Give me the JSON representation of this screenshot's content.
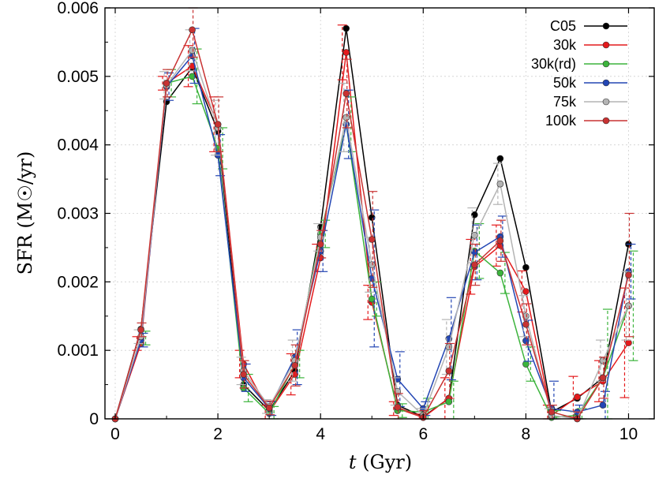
{
  "chart_data": {
    "type": "line",
    "title": "",
    "xlabel_italic": "t",
    "xlabel_rest": " (Gyr)",
    "ylabel": "SFR (M☉/yr)",
    "xlim": [
      -0.2,
      10.5
    ],
    "ylim": [
      0,
      0.006
    ],
    "x_ticks": [
      0,
      2,
      4,
      6,
      8,
      10
    ],
    "x_tick_labels": [
      "0",
      "2",
      "4",
      "6",
      "8",
      "10"
    ],
    "y_ticks": [
      0,
      0.001,
      0.002,
      0.003,
      0.004,
      0.005,
      0.006
    ],
    "y_tick_labels": [
      "0",
      "0.001",
      "0.002",
      "0.003",
      "0.004",
      "0.005",
      "0.006"
    ],
    "legend_position": "top-right",
    "x": [
      0,
      0.5,
      1,
      1.5,
      2,
      2.5,
      3,
      3.5,
      4,
      4.5,
      5,
      5.5,
      6,
      6.5,
      7,
      7.5,
      8,
      8.5,
      9,
      9.5,
      10
    ],
    "series": [
      {
        "name": "C05",
        "color": "#000000",
        "values": [
          0,
          0.00131,
          0.00463,
          0.00513,
          0.0042,
          0.0005,
          0.00012,
          0.0007,
          0.0028,
          0.0057,
          0.00294,
          0.0002,
          3e-05,
          0.0003,
          0.00298,
          0.0038,
          0.00221,
          0.0001,
          0.0003,
          0.0006,
          0.00255
        ],
        "errors": null
      },
      {
        "name": "30k",
        "color": "#e41a1c",
        "values": [
          0,
          0.0011,
          0.0049,
          0.00515,
          0.0043,
          0.0008,
          0.0001,
          0.00065,
          0.00235,
          0.00535,
          0.0017,
          0.00015,
          2e-05,
          0.0003,
          0.00222,
          0.00253,
          0.00186,
          5e-05,
          0.00032,
          0.00055,
          0.00111
        ],
        "errors": [
          0,
          0.0001,
          0.0001,
          0.0003,
          0.0004,
          0.0002,
          0.0001,
          0.0003,
          0.0002,
          0.0004,
          0.00025,
          0.0001,
          5e-05,
          0.0003,
          0.0004,
          0.0003,
          0.0003,
          0.00015,
          0.0003,
          0.0003,
          0.0008
        ]
      },
      {
        "name": "30k(rd)",
        "color": "#3cb43c",
        "values": [
          0,
          0.00118,
          0.0049,
          0.005,
          0.00395,
          0.00045,
          8e-05,
          0.0008,
          0.0027,
          0.0043,
          0.00175,
          0.00012,
          0.0001,
          0.00025,
          0.00245,
          0.00213,
          0.0008,
          2e-05,
          5e-05,
          0.0006,
          0.00165
        ],
        "errors": [
          0,
          0.0001,
          0.0002,
          0.0004,
          0.0003,
          0.0002,
          0.0001,
          0.0002,
          0.0002,
          0.0004,
          0.00025,
          0.0001,
          0.0002,
          0.0003,
          0.0004,
          0.0003,
          0.00025,
          0.0001,
          0.0001,
          0.001,
          0.0008
        ]
      },
      {
        "name": "50k",
        "color": "#2346b4",
        "values": [
          0,
          0.00115,
          0.00485,
          0.0053,
          0.00385,
          0.0006,
          0.00015,
          0.0009,
          0.00245,
          0.0043,
          0.00205,
          0.00058,
          0.00015,
          0.00117,
          0.00243,
          0.00266,
          0.00114,
          0.00015,
          0.0001,
          0.0002,
          0.00215
        ],
        "errors": [
          0,
          0.0001,
          0.0002,
          0.0004,
          0.0003,
          0.0002,
          0.0001,
          0.0004,
          0.0003,
          0.0005,
          0.001,
          0.0004,
          0.0001,
          0.0006,
          0.0004,
          0.0003,
          0.0003,
          0.0004,
          0.0001,
          0.0002,
          0.0004
        ]
      },
      {
        "name": "75k",
        "color": "#b4b4b4",
        "values": [
          0,
          0.0012,
          0.00487,
          0.00538,
          0.00425,
          0.0007,
          0.00018,
          0.00085,
          0.00265,
          0.0044,
          0.00225,
          0.0004,
          5e-05,
          0.00105,
          0.00268,
          0.00343,
          0.0015,
          5e-05,
          0.0,
          0.00085,
          0.00165
        ],
        "errors": [
          0,
          0.0001,
          0.0002,
          0.0003,
          0.0004,
          0.0002,
          0.0001,
          0.0003,
          0.0002,
          0.0005,
          0.0004,
          0.0002,
          0.0001,
          0.0004,
          0.0004,
          0.0003,
          0.0003,
          0.0001,
          0.0001,
          0.0003,
          0.0005
        ]
      },
      {
        "name": "100k",
        "color": "#c83232",
        "values": [
          0,
          0.0013,
          0.0049,
          0.00568,
          0.0043,
          0.00065,
          0.00016,
          0.00078,
          0.00255,
          0.00475,
          0.00262,
          0.00017,
          2e-05,
          0.0007,
          0.00225,
          0.0026,
          0.00138,
          0.0001,
          0.0,
          0.0006,
          0.0021
        ],
        "errors": [
          0,
          0.0001,
          0.0002,
          0.0004,
          0.0004,
          0.0002,
          0.0001,
          0.0003,
          0.0002,
          0.0005,
          0.0007,
          0.0002,
          0.0001,
          0.0004,
          0.0003,
          0.0003,
          0.0003,
          0.0001,
          0.0001,
          0.0003,
          0.0009
        ]
      }
    ]
  }
}
